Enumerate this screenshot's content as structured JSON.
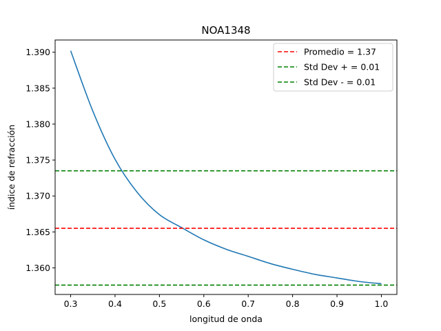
{
  "chart_data": {
    "type": "line",
    "title": "NOA1348",
    "xlabel": "longitud de onda",
    "ylabel": "índice de refracción",
    "xlim": [
      0.265,
      1.035
    ],
    "ylim": [
      1.3563,
      1.3917
    ],
    "xticks": [
      "0.3",
      "0.4",
      "0.5",
      "0.6",
      "0.7",
      "0.8",
      "0.9",
      "1.0"
    ],
    "yticks": [
      "1.360",
      "1.365",
      "1.370",
      "1.375",
      "1.380",
      "1.385",
      "1.390"
    ],
    "grid": false,
    "legend_position": "top-right",
    "series": [
      {
        "kind": "curve",
        "color": "#1f77b4",
        "x": [
          0.3,
          0.35,
          0.4,
          0.45,
          0.5,
          0.55,
          0.6,
          0.65,
          0.7,
          0.75,
          0.8,
          0.85,
          0.9,
          0.95,
          1.0
        ],
        "y": [
          1.3902,
          1.3818,
          1.3751,
          1.3705,
          1.3674,
          1.3656,
          1.3639,
          1.3626,
          1.3616,
          1.3606,
          1.3598,
          1.3591,
          1.3586,
          1.3581,
          1.3578
        ]
      },
      {
        "kind": "hline",
        "name": "Promedio = 1.37",
        "value": 1.3655,
        "color": "#ff0000"
      },
      {
        "kind": "hline",
        "name": "Std Dev + = 0.01",
        "value": 1.3735,
        "color": "#008000"
      },
      {
        "kind": "hline",
        "name": "Std Dev - = 0.01",
        "value": 1.3576,
        "color": "#008000"
      }
    ]
  }
}
